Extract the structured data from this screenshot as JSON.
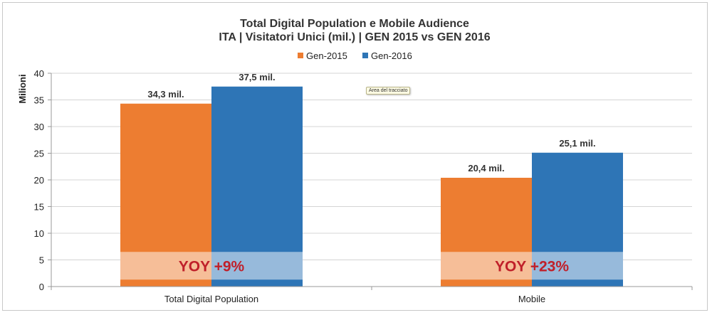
{
  "chart_data": {
    "type": "bar",
    "title": "Total Digital Population e Mobile Audience",
    "subtitle": "ITA | Visitatori Unici (mil.) | GEN 2015 vs GEN 2016",
    "xlabel": "",
    "ylabel": "Milioni",
    "ylim": [
      0,
      40
    ],
    "yticks": [
      0,
      5,
      10,
      15,
      20,
      25,
      30,
      35,
      40
    ],
    "categories": [
      "Total Digital Population",
      "Mobile"
    ],
    "series": [
      {
        "name": "Gen-2015",
        "color": "#ed7d31",
        "values": [
          34.3,
          20.4
        ],
        "labels": [
          "34,3 mil.",
          "20,4 mil."
        ]
      },
      {
        "name": "Gen-2016",
        "color": "#2e75b6",
        "values": [
          37.5,
          25.1
        ],
        "labels": [
          "37,5 mil.",
          "25,1 mil."
        ]
      }
    ],
    "annotations": [
      "YOY +9%",
      "YOY +23%"
    ],
    "legend_position": "top-center",
    "grid": true
  },
  "tooltip": "Area del tracciato"
}
